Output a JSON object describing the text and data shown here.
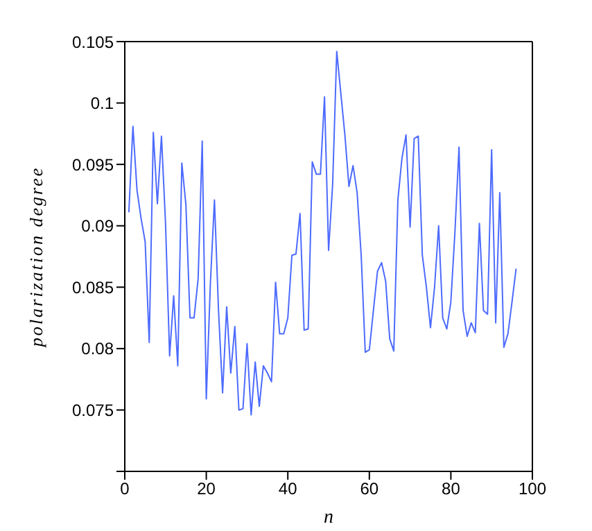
{
  "chart_data": {
    "type": "line",
    "xlabel": "n",
    "ylabel": "polarization degree",
    "x": [
      1,
      2,
      3,
      4,
      5,
      6,
      7,
      8,
      9,
      10,
      11,
      12,
      13,
      14,
      15,
      16,
      17,
      18,
      19,
      20,
      21,
      22,
      23,
      24,
      25,
      26,
      27,
      28,
      29,
      30,
      31,
      32,
      33,
      34,
      35,
      36,
      37,
      38,
      39,
      40,
      41,
      42,
      43,
      44,
      45,
      46,
      47,
      48,
      49,
      50,
      51,
      52,
      53,
      54,
      55,
      56,
      57,
      58,
      59,
      60,
      61,
      62,
      63,
      64,
      65,
      66,
      67,
      68,
      69,
      70,
      71,
      72,
      73,
      74,
      75,
      76,
      77,
      78,
      79,
      80,
      81,
      82,
      83,
      84,
      85,
      86,
      87,
      88,
      89,
      90,
      91,
      92,
      93,
      94,
      95,
      96
    ],
    "series": [
      {
        "color": "#4d6bfe",
        "values": [
          0.0911,
          0.0981,
          0.0929,
          0.0906,
          0.0887,
          0.0805,
          0.0976,
          0.0918,
          0.0973,
          0.0902,
          0.0794,
          0.0843,
          0.0786,
          0.0951,
          0.0917,
          0.0825,
          0.0825,
          0.0857,
          0.0969,
          0.0759,
          0.0853,
          0.0921,
          0.0831,
          0.0764,
          0.0834,
          0.078,
          0.0818,
          0.075,
          0.0751,
          0.0804,
          0.0746,
          0.0789,
          0.0753,
          0.0786,
          0.078,
          0.0773,
          0.0854,
          0.0812,
          0.0812,
          0.0825,
          0.0876,
          0.0877,
          0.091,
          0.0815,
          0.0816,
          0.0952,
          0.0942,
          0.0942,
          0.1005,
          0.088,
          0.0934,
          0.1042,
          0.1008,
          0.0974,
          0.0932,
          0.0949,
          0.0927,
          0.0876,
          0.0797,
          0.0799,
          0.0831,
          0.0863,
          0.087,
          0.0855,
          0.0808,
          0.0798,
          0.0921,
          0.0955,
          0.0974,
          0.0899,
          0.0971,
          0.0973,
          0.0876,
          0.085,
          0.0817,
          0.085,
          0.09,
          0.0825,
          0.0816,
          0.0838,
          0.0895,
          0.0964,
          0.0831,
          0.081,
          0.0821,
          0.0813,
          0.0902,
          0.0831,
          0.0828,
          0.0962,
          0.0821,
          0.0927,
          0.0801,
          0.0812,
          0.0838,
          0.0865
        ]
      }
    ],
    "xlim": [
      0,
      100
    ],
    "xticks": [
      0,
      20,
      40,
      60,
      80,
      100
    ],
    "ylim": [
      0.07,
      0.105
    ],
    "yticks": [
      {
        "value": 0.07,
        "label": null
      },
      0.075,
      0.08,
      0.085,
      0.09,
      0.095,
      0.1,
      0.105
    ],
    "grid": false,
    "legend": false,
    "marker": "none",
    "line_style": "solid"
  }
}
